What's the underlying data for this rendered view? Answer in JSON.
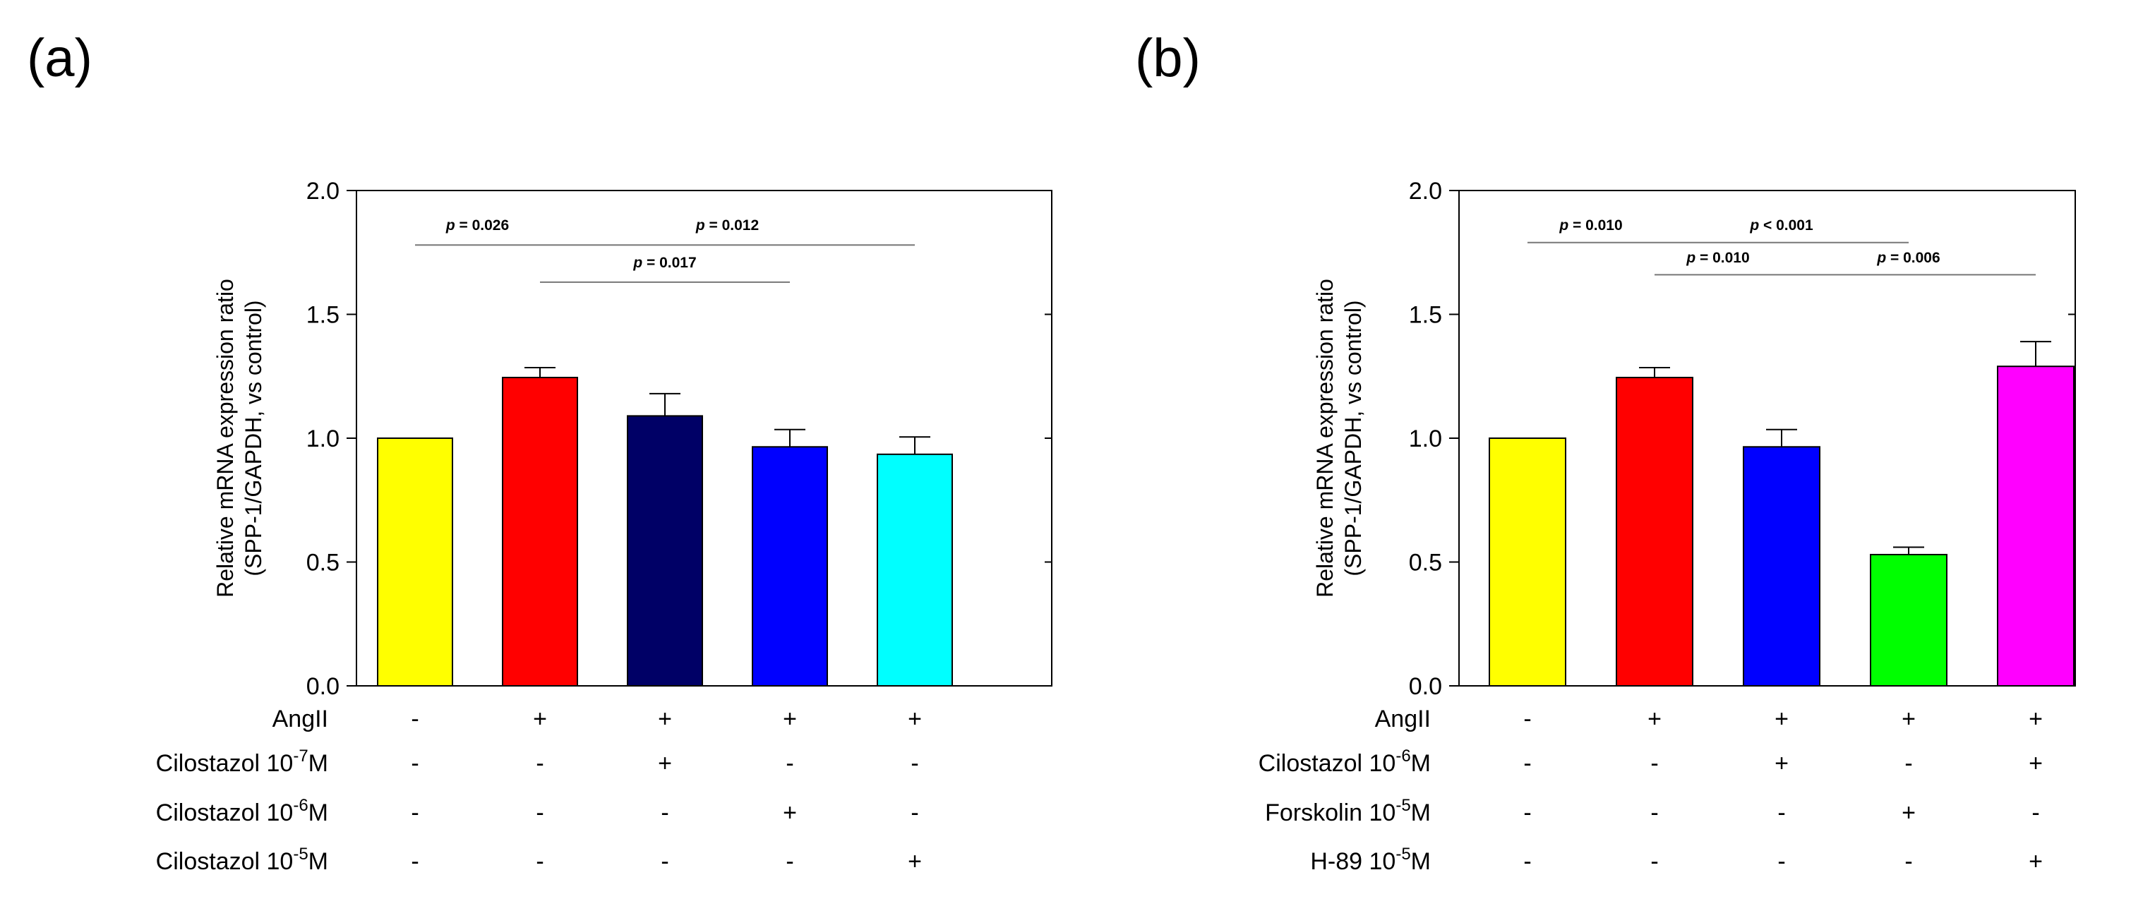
{
  "chart_data": [
    {
      "panel": "(a)",
      "type": "bar",
      "ylabel_line1": "Relative mRNA expression ratio",
      "ylabel_line2": "(SPP-1/GAPDH, vs control)",
      "ylim": [
        0,
        2.0
      ],
      "yticks": [
        "0.0",
        "0.5",
        "1.0",
        "1.5",
        "2.0"
      ],
      "ytick_values": [
        0,
        0.5,
        1.0,
        1.5,
        2.0
      ],
      "values": [
        1.0,
        1.245,
        1.09,
        0.965,
        0.935
      ],
      "errors": [
        0,
        0.04,
        0.09,
        0.07,
        0.07
      ],
      "colors": [
        "#ffff00",
        "#ff0000",
        "#000066",
        "#0000ff",
        "#00ffff"
      ],
      "annotations": [
        {
          "label": "p = 0.026",
          "from": 0,
          "to": 1,
          "y": 1.78,
          "ty": 1.84
        },
        {
          "label": "p = 0.012",
          "from": 1,
          "to": 4,
          "y": 1.78,
          "ty": 1.84
        },
        {
          "label": "p = 0.017",
          "from": 1,
          "to": 3,
          "y": 1.63,
          "ty": 1.69
        }
      ],
      "conditions": [
        {
          "label": "AngII",
          "exp": "",
          "unit": "",
          "values": [
            "-",
            "+",
            "+",
            "+",
            "+"
          ]
        },
        {
          "label": "Cilostazol 10",
          "exp": "-7",
          "unit": "M",
          "values": [
            "-",
            "-",
            "+",
            "-",
            "-"
          ]
        },
        {
          "label": "Cilostazol 10",
          "exp": "-6",
          "unit": "M",
          "values": [
            "-",
            "-",
            "-",
            "+",
            "-"
          ]
        },
        {
          "label": "Cilostazol 10",
          "exp": "-5",
          "unit": "M",
          "values": [
            "-",
            "-",
            "-",
            "-",
            "+"
          ]
        }
      ]
    },
    {
      "panel": "(b)",
      "type": "bar",
      "ylabel_line1": "Relative mRNA expression ratio",
      "ylabel_line2": "(SPP-1/GAPDH, vs control)",
      "ylim": [
        0,
        2.0
      ],
      "yticks": [
        "0.0",
        "0.5",
        "1.0",
        "1.5",
        "2.0"
      ],
      "ytick_values": [
        0,
        0.5,
        1.0,
        1.5,
        2.0
      ],
      "values": [
        1.0,
        1.245,
        0.965,
        0.53,
        1.29
      ],
      "errors": [
        0,
        0.04,
        0.07,
        0.03,
        0.1
      ],
      "colors": [
        "#ffff00",
        "#ff0000",
        "#0000ff",
        "#00ff00",
        "#ff00ff"
      ],
      "annotations": [
        {
          "label": "p = 0.010",
          "from": 0,
          "to": 1,
          "y": 1.79,
          "ty": 1.84
        },
        {
          "label": "p < 0.001",
          "from": 1,
          "to": 3,
          "y": 1.79,
          "ty": 1.84
        },
        {
          "label": "p = 0.010",
          "from": 1,
          "to": 2,
          "y": 1.66,
          "ty": 1.71
        },
        {
          "label": "p = 0.006",
          "from": 2,
          "to": 4,
          "y": 1.66,
          "ty": 1.71
        }
      ],
      "conditions": [
        {
          "label": "AngII",
          "exp": "",
          "unit": "",
          "values": [
            "-",
            "+",
            "+",
            "+",
            "+"
          ]
        },
        {
          "label": "Cilostazol 10",
          "exp": "-6",
          "unit": "M",
          "values": [
            "-",
            "-",
            "+",
            "-",
            "+"
          ]
        },
        {
          "label": "Forskolin 10",
          "exp": "-5",
          "unit": "M",
          "values": [
            "-",
            "-",
            "-",
            "+",
            "-"
          ]
        },
        {
          "label": "H-89 10",
          "exp": "-5",
          "unit": "M",
          "values": [
            "-",
            "-",
            "-",
            "-",
            "+"
          ]
        }
      ]
    }
  ]
}
